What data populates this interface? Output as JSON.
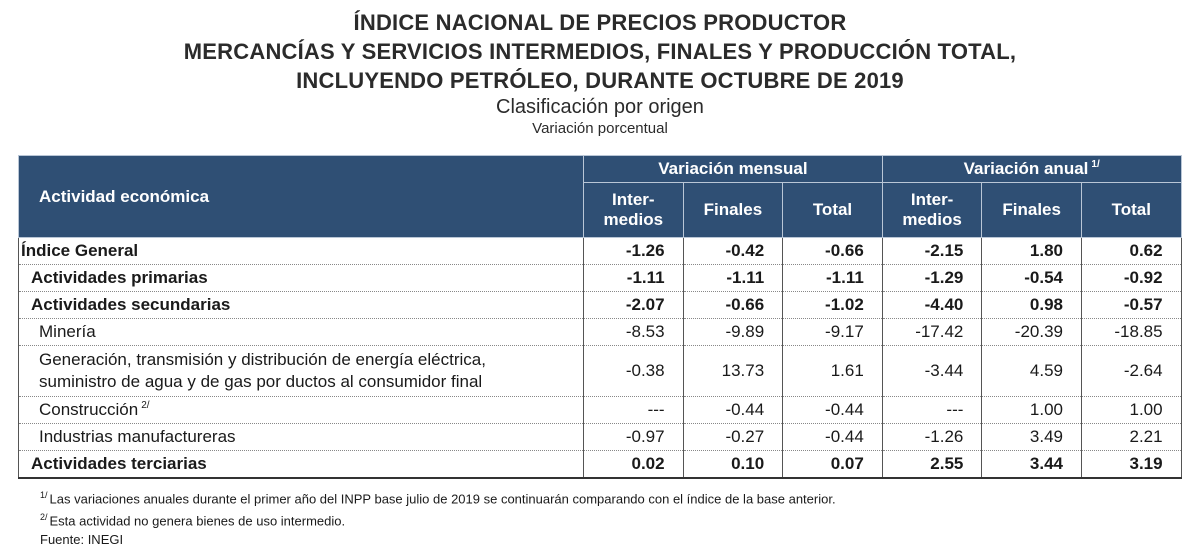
{
  "title": {
    "line1": "ÍNDICE NACIONAL DE PRECIOS PRODUCTOR",
    "line2": "MERCANCÍAS Y SERVICIOS INTERMEDIOS, FINALES Y PRODUCCIÓN TOTAL,",
    "line3": "INCLUYENDO PETRÓLEO, DURANTE OCTUBRE DE 2019",
    "subtitle": "Clasificación por origen",
    "subtitle2": "Variación porcentual"
  },
  "header": {
    "activity": "Actividad económica",
    "group_monthly": "Variación mensual",
    "group_annual": "Variación anual",
    "group_annual_note": "1/",
    "col_inter_1": "Inter-",
    "col_inter_2": "medios",
    "col_finales": "Finales",
    "col_total": "Total"
  },
  "rows": [
    {
      "label": "Índice General",
      "note": "",
      "vals": [
        "-1.26",
        "-0.42",
        "-0.66",
        "-2.15",
        "1.80",
        "0.62"
      ]
    },
    {
      "label": "Actividades primarias",
      "note": "",
      "vals": [
        "-1.11",
        "-1.11",
        "-1.11",
        "-1.29",
        "-0.54",
        "-0.92"
      ]
    },
    {
      "label": "Actividades secundarias",
      "note": "",
      "vals": [
        "-2.07",
        "-0.66",
        "-1.02",
        "-4.40",
        "0.98",
        "-0.57"
      ]
    },
    {
      "label": "Minería",
      "note": "",
      "vals": [
        "-8.53",
        "-9.89",
        "-9.17",
        "-17.42",
        "-20.39",
        "-18.85"
      ]
    },
    {
      "label": "Generación, transmisión y distribución de energía eléctrica,",
      "label2": "suministro de agua y de gas por ductos al consumidor final",
      "note": "",
      "vals": [
        "-0.38",
        "13.73",
        "1.61",
        "-3.44",
        "4.59",
        "-2.64"
      ]
    },
    {
      "label": "Construcción",
      "note": "2/",
      "vals": [
        "---",
        "-0.44",
        "-0.44",
        "---",
        "1.00",
        "1.00"
      ]
    },
    {
      "label": "Industrias manufactureras",
      "note": "",
      "vals": [
        "-0.97",
        "-0.27",
        "-0.44",
        "-1.26",
        "3.49",
        "2.21"
      ]
    },
    {
      "label": "Actividades terciarias",
      "note": "",
      "vals": [
        "0.02",
        "0.10",
        "0.07",
        "2.55",
        "3.44",
        "3.19"
      ]
    }
  ],
  "footnotes": {
    "n1_mark": "1/",
    "n1": "Las variaciones anuales durante el primer año del INPP base julio de 2019 se continuarán comparando con el índice de la base anterior.",
    "n2_mark": "2/",
    "n2": "Esta actividad no genera bienes de uso intermedio.",
    "source": "Fuente: INEGI"
  },
  "colors": {
    "header_bg": "#2f4f74",
    "header_text": "#ffffff"
  }
}
